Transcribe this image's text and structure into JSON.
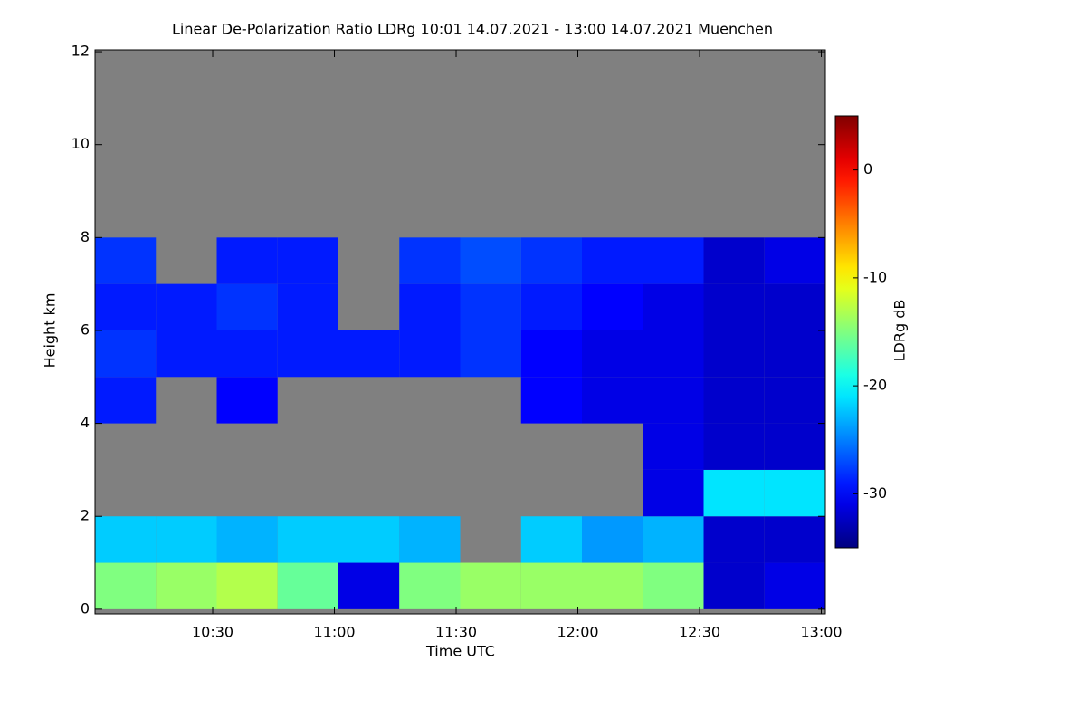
{
  "chart_data": {
    "type": "heatmap",
    "title": "Linear De-Polarization Ratio LDRg   10:01 14.07.2021 - 13:00 14.07.2021 Muenchen",
    "x_label": "Time UTC",
    "y_label": "Height km",
    "colorbar_label": "LDRg dB",
    "x_bins": [
      601,
      616,
      631,
      646,
      661,
      676,
      691,
      706,
      721,
      736,
      751,
      766,
      781
    ],
    "y_bins": [
      0,
      1,
      2,
      3,
      4,
      5,
      6,
      7,
      8,
      9,
      10,
      11,
      12
    ],
    "z": [
      [
        -15,
        -14,
        -13,
        -16,
        -31,
        -15,
        -14,
        -14,
        -14,
        -15,
        -32,
        -31
      ],
      [
        -22,
        -22,
        -23,
        -22,
        -22,
        -23,
        null,
        -22,
        -24,
        -23,
        -32,
        -32
      ],
      [
        null,
        null,
        null,
        null,
        null,
        null,
        null,
        null,
        null,
        -31,
        -21,
        -21
      ],
      [
        null,
        null,
        null,
        null,
        null,
        null,
        null,
        null,
        null,
        -31,
        -32,
        -32
      ],
      [
        -29,
        null,
        -30,
        null,
        null,
        null,
        null,
        -30,
        -31,
        -31,
        -32,
        -32
      ],
      [
        -28,
        -29,
        -29,
        -29,
        -29,
        -29,
        -28,
        -30,
        -31,
        -31,
        -32,
        -32
      ],
      [
        -29,
        -29,
        -28,
        -29,
        null,
        -29,
        -28,
        -29,
        -30,
        -31,
        -32,
        -32
      ],
      [
        -28,
        null,
        -29,
        -29,
        null,
        -28,
        -27,
        -28,
        -29,
        -29,
        -32,
        -31
      ],
      [
        null,
        null,
        null,
        null,
        null,
        null,
        null,
        null,
        null,
        null,
        null,
        null
      ],
      [
        null,
        null,
        null,
        null,
        null,
        null,
        null,
        null,
        null,
        null,
        null,
        null
      ],
      [
        null,
        null,
        null,
        null,
        null,
        null,
        null,
        null,
        null,
        null,
        null,
        null
      ],
      [
        null,
        null,
        null,
        null,
        null,
        null,
        null,
        null,
        null,
        null,
        null,
        null
      ]
    ],
    "xlim": [
      601,
      781
    ],
    "xticks": [
      {
        "value": 630,
        "label": "10:30"
      },
      {
        "value": 660,
        "label": "11:00"
      },
      {
        "value": 690,
        "label": "11:30"
      },
      {
        "value": 720,
        "label": "12:00"
      },
      {
        "value": 750,
        "label": "12:30"
      },
      {
        "value": 780,
        "label": "13:00"
      }
    ],
    "ylim": [
      -0.1,
      12.04
    ],
    "yticks": [
      0,
      2,
      4,
      6,
      8,
      10,
      12
    ],
    "zlim": [
      -35,
      5
    ],
    "zticks": [
      -30,
      -20,
      -10,
      0
    ],
    "colormap": "jet",
    "missing_color": "#808080"
  }
}
